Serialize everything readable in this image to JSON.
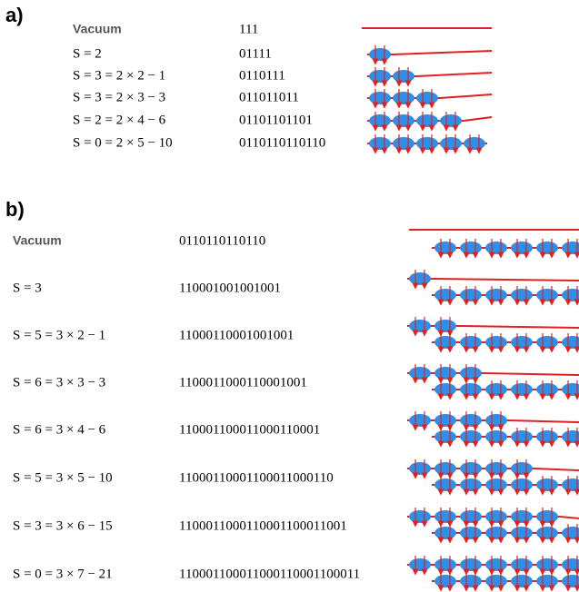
{
  "panel_a": {
    "label": "a)",
    "rows": [
      {
        "label": "Vacuum",
        "string": "111"
      },
      {
        "label": "S = 2",
        "string": "01111"
      },
      {
        "label": "S = 3 = 2 × 2 − 1",
        "string": "0110111"
      },
      {
        "label": "S = 3 = 2 × 3 − 3",
        "string": "011011011"
      },
      {
        "label": "S = 2 = 2 × 4 − 6",
        "string": "01101101101"
      },
      {
        "label": "S = 0 = 2 × 5 − 10",
        "string": "0110110110110"
      }
    ]
  },
  "panel_b": {
    "label": "b)",
    "rows": [
      {
        "label": "Vacuum",
        "string": "0110110110110"
      },
      {
        "label": "S = 3",
        "string": "110001001001001"
      },
      {
        "label": "S = 5 = 3 × 2 − 1",
        "string": "11000110001001001"
      },
      {
        "label": "S = 6 = 3 × 3 − 3",
        "string": "1100011000110001001"
      },
      {
        "label": "S = 6 = 3 × 4 − 6",
        "string": "110001100011000110001"
      },
      {
        "label": "S = 5 = 3 × 5 − 10",
        "string": "11000110001100011000110"
      },
      {
        "label": "S = 3 = 3 × 6 − 15",
        "string": "1100011000110001100011001"
      },
      {
        "label": "S = 0 = 3 × 7 − 21",
        "string": "110001100011000110001100011"
      }
    ]
  }
}
